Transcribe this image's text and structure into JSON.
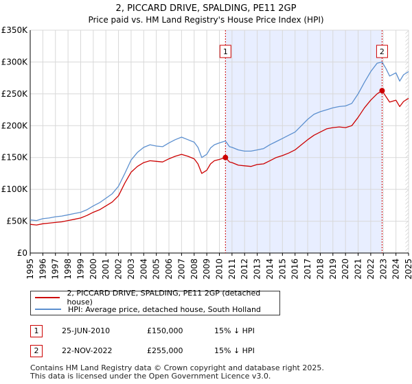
{
  "title_line1": "2, PICCARD DRIVE, SPALDING, PE11 2GP",
  "title_line2": "Price paid vs. HM Land Registry's House Price Index (HPI)",
  "legend": {
    "series1_label": "2, PICCARD DRIVE, SPALDING, PE11 2GP (detached house)",
    "series2_label": "HPI: Average price, detached house, South Holland"
  },
  "transactions": [
    {
      "num": "1",
      "date": "25-JUN-2010",
      "price": "£150,000",
      "hpi": "15% ↓ HPI"
    },
    {
      "num": "2",
      "date": "22-NOV-2022",
      "price": "£255,000",
      "hpi": "15% ↓ HPI"
    }
  ],
  "footer": {
    "line1": "Contains HM Land Registry data © Crown copyright and database right 2025.",
    "line2": "This data is licensed under the Open Government Licence v3.0."
  },
  "colors": {
    "property": "#cc0000",
    "hpi": "#5b8fcf",
    "shade": "#e8eeff",
    "marker_line": "#cc0000"
  },
  "chart_data": {
    "type": "line",
    "title": "2, PICCARD DRIVE, SPALDING, PE11 2GP",
    "subtitle": "Price paid vs. HM Land Registry's House Price Index (HPI)",
    "xlabel": "",
    "ylabel": "",
    "xlim": [
      1995,
      2025
    ],
    "ylim": [
      0,
      350000
    ],
    "y_ticks": [
      0,
      50000,
      100000,
      150000,
      200000,
      250000,
      300000,
      350000
    ],
    "y_tick_labels": [
      "£0",
      "£50K",
      "£100K",
      "£150K",
      "£200K",
      "£250K",
      "£300K",
      "£350K"
    ],
    "x_ticks": [
      "1995",
      "1996",
      "1997",
      "1998",
      "1999",
      "2000",
      "2001",
      "2002",
      "2003",
      "2004",
      "2005",
      "2006",
      "2007",
      "2008",
      "2009",
      "2010",
      "2011",
      "2012",
      "2013",
      "2014",
      "2015",
      "2016",
      "2017",
      "2018",
      "2019",
      "2020",
      "2021",
      "2022",
      "2023",
      "2024",
      "2025"
    ],
    "grid": true,
    "shaded_region": [
      2010.48,
      2022.9
    ],
    "sales": [
      {
        "label": "1",
        "x": 2010.48,
        "y": 150000
      },
      {
        "label": "2",
        "x": 2022.9,
        "y": 255000
      }
    ],
    "series": [
      {
        "name": "2, PICCARD DRIVE, SPALDING, PE11 2GP (detached house)",
        "x": [
          1995,
          1995.5,
          1996,
          1996.5,
          1997,
          1997.5,
          1998,
          1998.5,
          1999,
          1999.5,
          2000,
          2000.5,
          2001,
          2001.5,
          2002,
          2002.5,
          2003,
          2003.5,
          2004,
          2004.5,
          2005,
          2005.5,
          2006,
          2006.5,
          2007,
          2007.5,
          2008,
          2008.3,
          2008.6,
          2009,
          2009.3,
          2009.6,
          2010,
          2010.48,
          2010.8,
          2011,
          2011.5,
          2012,
          2012.5,
          2013,
          2013.5,
          2014,
          2014.5,
          2015,
          2015.5,
          2016,
          2016.5,
          2017,
          2017.5,
          2018,
          2018.5,
          2019,
          2019.5,
          2020,
          2020.5,
          2021,
          2021.5,
          2022,
          2022.5,
          2022.9,
          2023.2,
          2023.5,
          2024,
          2024.3,
          2024.6,
          2025
        ],
        "y": [
          45000,
          44000,
          46000,
          47000,
          48000,
          49000,
          51000,
          53000,
          55000,
          59000,
          64000,
          68000,
          74000,
          80000,
          90000,
          110000,
          127000,
          136000,
          142000,
          145000,
          144000,
          143000,
          148000,
          152000,
          155000,
          152000,
          148000,
          140000,
          125000,
          130000,
          140000,
          145000,
          147000,
          150000,
          143000,
          142000,
          138000,
          137000,
          136000,
          139000,
          140000,
          145000,
          150000,
          153000,
          157000,
          162000,
          170000,
          178000,
          185000,
          190000,
          195000,
          197000,
          198000,
          197000,
          200000,
          213000,
          228000,
          240000,
          250000,
          255000,
          246000,
          237000,
          240000,
          230000,
          238000,
          243000
        ]
      },
      {
        "name": "HPI: Average price, detached house, South Holland",
        "x": [
          1995,
          1995.5,
          1996,
          1996.5,
          1997,
          1997.5,
          1998,
          1998.5,
          1999,
          1999.5,
          2000,
          2000.5,
          2001,
          2001.5,
          2002,
          2002.5,
          2003,
          2003.5,
          2004,
          2004.5,
          2005,
          2005.5,
          2006,
          2006.5,
          2007,
          2007.5,
          2008,
          2008.3,
          2008.6,
          2009,
          2009.3,
          2009.6,
          2010,
          2010.48,
          2010.8,
          2011,
          2011.5,
          2012,
          2012.5,
          2013,
          2013.5,
          2014,
          2014.5,
          2015,
          2015.5,
          2016,
          2016.5,
          2017,
          2017.5,
          2018,
          2018.5,
          2019,
          2019.5,
          2020,
          2020.5,
          2021,
          2021.5,
          2022,
          2022.5,
          2022.9,
          2023.2,
          2023.5,
          2024,
          2024.3,
          2024.6,
          2025
        ],
        "y": [
          52000,
          51000,
          54000,
          55000,
          57000,
          58000,
          60000,
          62000,
          64000,
          68000,
          74000,
          79000,
          86000,
          93000,
          105000,
          125000,
          146000,
          158000,
          166000,
          170000,
          168000,
          167000,
          173000,
          178000,
          182000,
          178000,
          174000,
          166000,
          150000,
          155000,
          165000,
          170000,
          173000,
          176000,
          167000,
          166000,
          162000,
          160000,
          160000,
          162000,
          164000,
          170000,
          175000,
          180000,
          185000,
          190000,
          200000,
          210000,
          218000,
          222000,
          225000,
          228000,
          230000,
          231000,
          235000,
          250000,
          268000,
          285000,
          298000,
          300000,
          290000,
          278000,
          283000,
          270000,
          280000,
          285000
        ]
      }
    ]
  }
}
